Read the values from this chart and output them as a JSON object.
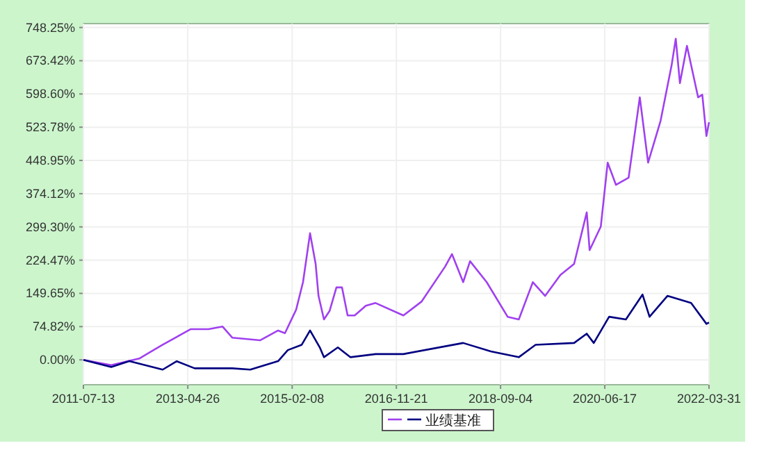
{
  "chart_data": {
    "type": "line",
    "xlim": [
      "2011-07-13",
      "2022-03-31"
    ],
    "ylim": [
      -56,
      757
    ],
    "xticks": [
      "2011-07-13",
      "2013-04-26",
      "2015-02-08",
      "2016-11-21",
      "2018-09-04",
      "2020-06-17",
      "2022-03-31"
    ],
    "yticks": [
      {
        "value": 0,
        "label": "0.00%"
      },
      {
        "value": 74.82,
        "label": "74.82%"
      },
      {
        "value": 149.65,
        "label": "149.65%"
      },
      {
        "value": 224.47,
        "label": "224.47%"
      },
      {
        "value": 299.3,
        "label": "299.30%"
      },
      {
        "value": 374.12,
        "label": "374.12%"
      },
      {
        "value": 448.95,
        "label": "448.95%"
      },
      {
        "value": 523.78,
        "label": "523.78%"
      },
      {
        "value": 598.6,
        "label": "598.60%"
      },
      {
        "value": 673.42,
        "label": "673.42%"
      },
      {
        "value": 748.25,
        "label": "748.25%"
      }
    ],
    "grid": true,
    "legend": "bottom",
    "series": [
      {
        "color": "#a040f0",
        "x": [
          "2011-07-13",
          "2012-01-03",
          "2012-06-26",
          "2012-11-20",
          "2013-05-13",
          "2013-09-03",
          "2013-11-29",
          "2014-01-29",
          "2014-07-22",
          "2014-11-12",
          "2014-12-25",
          "2015-03-05",
          "2015-04-17",
          "2015-05-31",
          "2015-07-05",
          "2015-07-23",
          "2015-08-26",
          "2015-09-30",
          "2015-11-12",
          "2015-12-17",
          "2016-01-21",
          "2016-03-05",
          "2016-05-14",
          "2016-07-14",
          "2017-01-04",
          "2017-04-27",
          "2017-09-22",
          "2017-11-04",
          "2018-01-13",
          "2018-02-25",
          "2018-06-09",
          "2018-10-18",
          "2018-12-27",
          "2019-03-25",
          "2019-06-10",
          "2019-09-13",
          "2019-12-08",
          "2020-02-25",
          "2020-03-14",
          "2020-05-23",
          "2020-07-05",
          "2020-08-26",
          "2020-11-13",
          "2021-01-22",
          "2021-03-15",
          "2021-06-01",
          "2021-08-09",
          "2021-09-04",
          "2021-09-30",
          "2021-11-13",
          "2022-01-22",
          "2022-02-17",
          "2022-03-15",
          "2022-03-31"
        ],
        "values": [
          0,
          -12,
          3,
          34,
          69,
          69,
          75,
          50,
          44,
          66,
          60,
          113,
          175,
          285,
          216,
          144,
          91,
          110,
          163,
          163,
          100,
          100,
          122,
          128,
          100,
          131,
          210,
          238,
          175,
          222,
          175,
          97,
          91,
          175,
          144,
          191,
          216,
          332,
          247,
          300,
          444,
          394,
          410,
          591,
          444,
          538,
          663,
          723,
          623,
          707,
          591,
          597,
          504,
          535
        ]
      },
      {
        "name": "业绩基准",
        "color": "#000080",
        "x": [
          "2011-07-13",
          "2012-01-03",
          "2012-04-25",
          "2012-11-20",
          "2013-02-16",
          "2013-06-08",
          "2014-01-29",
          "2014-05-22",
          "2014-11-12",
          "2015-01-12",
          "2015-04-09",
          "2015-05-31",
          "2015-07-31",
          "2015-08-26",
          "2015-11-21",
          "2016-02-07",
          "2016-07-14",
          "2017-01-04",
          "2018-01-13",
          "2018-07-05",
          "2018-12-27",
          "2019-04-11",
          "2019-12-08",
          "2020-02-25",
          "2020-04-09",
          "2020-07-14",
          "2020-10-27",
          "2021-02-08",
          "2021-03-24",
          "2021-07-14",
          "2021-12-09",
          "2022-03-15",
          "2022-03-31"
        ],
        "values": [
          0,
          -16,
          -3,
          -22,
          -3,
          -19,
          -19,
          -22,
          -3,
          22,
          34,
          66,
          28,
          6,
          28,
          6,
          13,
          13,
          38,
          19,
          6,
          34,
          38,
          59,
          38,
          97,
          91,
          147,
          97,
          144,
          128,
          81,
          84
        ]
      }
    ]
  }
}
